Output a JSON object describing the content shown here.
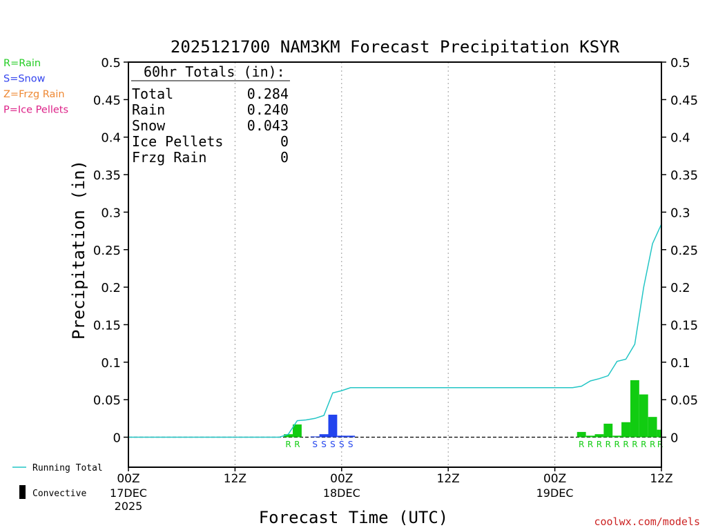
{
  "chart_data": {
    "type": "bar",
    "title": "2025121700 NAM3KM Forecast Precipitation KSYR",
    "xlabel": "Forecast Time (UTC)",
    "ylabel": "Precipitation (in)",
    "ylim": [
      -0.04,
      0.5
    ],
    "xlim_hours": [
      0,
      60
    ],
    "y_ticks": [
      "0",
      "0.05",
      "0.1",
      "0.15",
      "0.2",
      "0.25",
      "0.3",
      "0.35",
      "0.4",
      "0.45",
      "0.5"
    ],
    "y_tick_values": [
      0,
      0.05,
      0.1,
      0.15,
      0.2,
      0.25,
      0.3,
      0.35,
      0.4,
      0.45,
      0.5
    ],
    "x_ticks": [
      {
        "hour": 0,
        "label": "00Z",
        "date": "17DEC",
        "year": "2025"
      },
      {
        "hour": 12,
        "label": "12Z",
        "date": "",
        "year": ""
      },
      {
        "hour": 24,
        "label": "00Z",
        "date": "18DEC",
        "year": ""
      },
      {
        "hour": 36,
        "label": "12Z",
        "date": "",
        "year": ""
      },
      {
        "hour": 48,
        "label": "00Z",
        "date": "19DEC",
        "year": ""
      },
      {
        "hour": 60,
        "label": "12Z",
        "date": "",
        "year": ""
      }
    ],
    "legend": [
      {
        "text": "R=Rain",
        "color": "#22cc22"
      },
      {
        "text": "S=Snow",
        "color": "#3344ee"
      },
      {
        "text": "Z=Frzg Rain",
        "color": "#ee8833"
      },
      {
        "text": "P=Ice Pellets",
        "color": "#dd2288"
      }
    ],
    "bottom_legend": [
      {
        "name": "running-total",
        "text": "Running Total",
        "color": "#22c5c5"
      },
      {
        "name": "convective",
        "text": "Convective",
        "color": "#000000"
      }
    ],
    "totals": {
      "header": "60hr Totals (in):",
      "rows": [
        {
          "label": "Total",
          "value": "0.284"
        },
        {
          "label": "Rain",
          "value": "0.240"
        },
        {
          "label": "Snow",
          "value": "0.043"
        },
        {
          "label": "Ice Pellets",
          "value": "0"
        },
        {
          "label": "Frzg Rain",
          "value": "0"
        }
      ]
    },
    "bars": [
      {
        "hour": 18,
        "value": 0.004,
        "type": "R"
      },
      {
        "hour": 19,
        "value": 0.017,
        "type": "R"
      },
      {
        "hour": 21,
        "value": 0.001,
        "type": "S"
      },
      {
        "hour": 22,
        "value": 0.004,
        "type": "S"
      },
      {
        "hour": 23,
        "value": 0.03,
        "type": "S"
      },
      {
        "hour": 24,
        "value": 0.002,
        "type": "S"
      },
      {
        "hour": 25,
        "value": 0.002,
        "type": "S"
      },
      {
        "hour": 51,
        "value": 0.007,
        "type": "R"
      },
      {
        "hour": 52,
        "value": 0.002,
        "type": "R"
      },
      {
        "hour": 53,
        "value": 0.004,
        "type": "R"
      },
      {
        "hour": 54,
        "value": 0.018,
        "type": "R"
      },
      {
        "hour": 55,
        "value": 0.002,
        "type": "R"
      },
      {
        "hour": 56,
        "value": 0.02,
        "type": "R"
      },
      {
        "hour": 57,
        "value": 0.076,
        "type": "R"
      },
      {
        "hour": 58,
        "value": 0.057,
        "type": "R"
      },
      {
        "hour": 59,
        "value": 0.027,
        "type": "R"
      },
      {
        "hour": 60,
        "value": 0.01,
        "type": "R"
      }
    ],
    "running_total": [
      [
        0,
        0
      ],
      [
        17,
        0
      ],
      [
        18,
        0.004
      ],
      [
        19,
        0.022
      ],
      [
        20,
        0.023
      ],
      [
        21,
        0.025
      ],
      [
        22,
        0.029
      ],
      [
        23,
        0.059
      ],
      [
        24,
        0.062
      ],
      [
        25,
        0.066
      ],
      [
        26,
        0.066
      ],
      [
        50,
        0.066
      ],
      [
        51,
        0.068
      ],
      [
        52,
        0.075
      ],
      [
        53,
        0.078
      ],
      [
        54,
        0.082
      ],
      [
        55,
        0.101
      ],
      [
        56,
        0.104
      ],
      [
        57,
        0.124
      ],
      [
        58,
        0.2
      ],
      [
        59,
        0.258
      ],
      [
        60,
        0.284
      ]
    ],
    "credit": "coolwx.com/models"
  }
}
